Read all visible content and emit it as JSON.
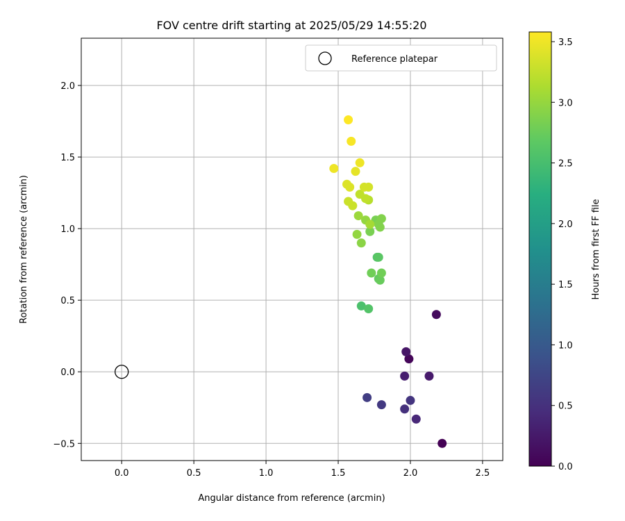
{
  "chart_data": {
    "type": "scatter",
    "title": "FOV centre drift starting at 2025/05/29 14:55:20",
    "xlabel": "Angular distance from reference (arcmin)",
    "ylabel": "Rotation from reference (arcmin)",
    "xlim": [
      -0.28,
      2.64
    ],
    "ylim": [
      -0.62,
      2.33
    ],
    "x_ticks": [
      0.0,
      0.5,
      1.0,
      1.5,
      2.0,
      2.5
    ],
    "x_tick_labels": [
      "0.0",
      "0.5",
      "1.0",
      "1.5",
      "2.0",
      "2.5"
    ],
    "y_ticks": [
      -0.5,
      0.0,
      0.5,
      1.0,
      1.5,
      2.0
    ],
    "y_tick_labels": [
      "−0.5",
      "0.0",
      "0.5",
      "1.0",
      "1.5",
      "2.0"
    ],
    "grid": true,
    "legend": {
      "placement": "top-right",
      "entries": [
        "Reference platepar"
      ]
    },
    "reference_point": {
      "x": 0.0,
      "y": 0.0,
      "marker": "open-circle"
    },
    "colorbar": {
      "label": "Hours from first FF file",
      "colormap": "viridis",
      "range": [
        0.0,
        3.58
      ],
      "ticks": [
        0.0,
        0.5,
        1.0,
        1.5,
        2.0,
        2.5,
        3.0,
        3.5
      ],
      "tick_labels": [
        "0.0",
        "0.5",
        "1.0",
        "1.5",
        "2.0",
        "2.5",
        "3.0",
        "3.5"
      ]
    },
    "points": [
      {
        "x": 2.22,
        "y": -0.5,
        "c": 0.0
      },
      {
        "x": 1.99,
        "y": 0.09,
        "c": 0.05
      },
      {
        "x": 2.18,
        "y": 0.4,
        "c": 0.1
      },
      {
        "x": 1.97,
        "y": 0.14,
        "c": 0.2
      },
      {
        "x": 2.13,
        "y": -0.03,
        "c": 0.25
      },
      {
        "x": 1.96,
        "y": -0.03,
        "c": 0.3
      },
      {
        "x": 2.04,
        "y": -0.33,
        "c": 0.4
      },
      {
        "x": 1.96,
        "y": -0.26,
        "c": 0.5
      },
      {
        "x": 2.0,
        "y": -0.2,
        "c": 0.55
      },
      {
        "x": 1.8,
        "y": -0.23,
        "c": 0.6
      },
      {
        "x": 1.7,
        "y": -0.18,
        "c": 0.65
      },
      {
        "x": 1.66,
        "y": 0.46,
        "c": 2.55
      },
      {
        "x": 1.71,
        "y": 0.44,
        "c": 2.6
      },
      {
        "x": 1.77,
        "y": 0.8,
        "c": 2.6
      },
      {
        "x": 1.78,
        "y": 0.8,
        "c": 2.65
      },
      {
        "x": 1.78,
        "y": 0.65,
        "c": 2.7
      },
      {
        "x": 1.79,
        "y": 0.64,
        "c": 2.75
      },
      {
        "x": 1.8,
        "y": 0.69,
        "c": 2.8
      },
      {
        "x": 1.73,
        "y": 0.69,
        "c": 2.8
      },
      {
        "x": 1.72,
        "y": 0.98,
        "c": 2.85
      },
      {
        "x": 1.76,
        "y": 1.06,
        "c": 2.85
      },
      {
        "x": 1.79,
        "y": 1.01,
        "c": 2.9
      },
      {
        "x": 1.78,
        "y": 1.03,
        "c": 2.9
      },
      {
        "x": 1.8,
        "y": 1.07,
        "c": 2.9
      },
      {
        "x": 1.66,
        "y": 0.9,
        "c": 2.95
      },
      {
        "x": 1.63,
        "y": 0.96,
        "c": 3.0
      },
      {
        "x": 1.69,
        "y": 1.06,
        "c": 3.0
      },
      {
        "x": 1.64,
        "y": 1.09,
        "c": 3.05
      },
      {
        "x": 1.72,
        "y": 1.03,
        "c": 3.1
      },
      {
        "x": 1.71,
        "y": 1.2,
        "c": 3.2
      },
      {
        "x": 1.69,
        "y": 1.21,
        "c": 3.25
      },
      {
        "x": 1.65,
        "y": 1.24,
        "c": 3.25
      },
      {
        "x": 1.6,
        "y": 1.16,
        "c": 3.3
      },
      {
        "x": 1.57,
        "y": 1.19,
        "c": 3.3
      },
      {
        "x": 1.71,
        "y": 1.29,
        "c": 3.35
      },
      {
        "x": 1.68,
        "y": 1.29,
        "c": 3.35
      },
      {
        "x": 1.56,
        "y": 1.31,
        "c": 3.4
      },
      {
        "x": 1.58,
        "y": 1.29,
        "c": 3.4
      },
      {
        "x": 1.62,
        "y": 1.4,
        "c": 3.45
      },
      {
        "x": 1.65,
        "y": 1.46,
        "c": 3.5
      },
      {
        "x": 1.47,
        "y": 1.42,
        "c": 3.5
      },
      {
        "x": 1.59,
        "y": 1.61,
        "c": 3.55
      },
      {
        "x": 1.57,
        "y": 1.76,
        "c": 3.58
      }
    ]
  }
}
